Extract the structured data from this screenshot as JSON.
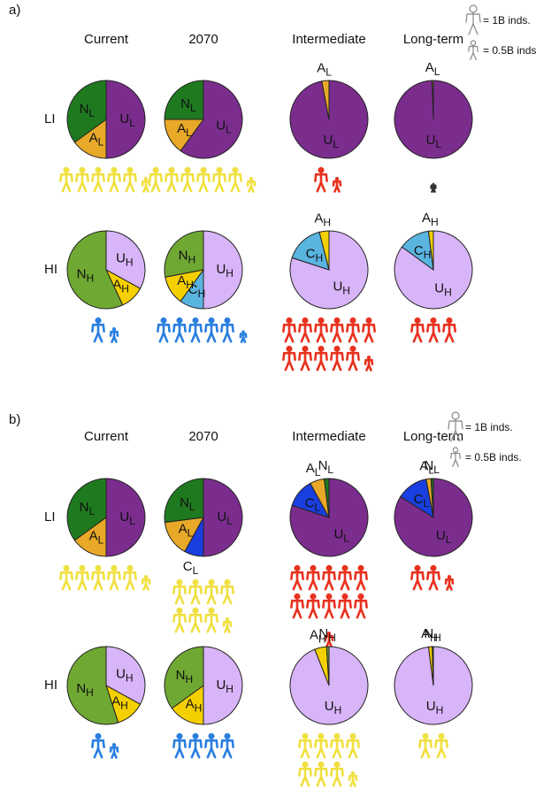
{
  "panels": [
    {
      "label": "a)",
      "columns": [
        "Current",
        "2070",
        "Intermediate",
        "Long-term"
      ],
      "rows": [
        "LI",
        "HI"
      ],
      "legend": [
        "= 1B inds.",
        "= 0.5B inds"
      ]
    },
    {
      "label": "b)",
      "columns": [
        "Current",
        "2070",
        "Intermediate",
        "Long-term"
      ],
      "rows": [
        "LI",
        "HI"
      ],
      "legend": [
        "= 1B inds.",
        "= 0.5B inds."
      ]
    }
  ],
  "chart_data": [
    {
      "type": "pie",
      "categories": [
        "U",
        "A",
        "N"
      ],
      "subscript": "L",
      "values": [
        50,
        15,
        35
      ],
      "colors": [
        "#7b2d8e",
        "#e8a828",
        "#1f7a1f"
      ],
      "population": 5.5,
      "population_color": "#f0e040"
    },
    {
      "type": "pie",
      "categories": [
        "U",
        "A",
        "N"
      ],
      "subscript": "L",
      "values": [
        60,
        15,
        25
      ],
      "colors": [
        "#7b2d8e",
        "#e8a828",
        "#1f7a1f"
      ],
      "population": 6.5,
      "population_color": "#f0e040"
    },
    {
      "type": "pie",
      "categories": [
        "U",
        "A"
      ],
      "subscript": "L",
      "values": [
        97,
        3
      ],
      "colors": [
        "#7b2d8e",
        "#e8a828"
      ],
      "population": 1.5,
      "population_color": "#e8321e"
    },
    {
      "type": "pie",
      "categories": [
        "U",
        "A"
      ],
      "subscript": "L",
      "values": [
        99.5,
        0.5
      ],
      "colors": [
        "#7b2d8e",
        "#e8a828"
      ],
      "population": 0.1,
      "population_color": "#333333"
    },
    {
      "type": "pie",
      "categories": [
        "U",
        "A",
        "N"
      ],
      "subscript": "H",
      "values": [
        33,
        10,
        57
      ],
      "colors": [
        "#d8b4f8",
        "#f5d000",
        "#6fa832"
      ],
      "population": 1.5,
      "population_color": "#2a7fe0"
    },
    {
      "type": "pie",
      "categories": [
        "U",
        "C",
        "A",
        "N"
      ],
      "subscript": "H",
      "values": [
        50,
        10,
        12,
        28
      ],
      "colors": [
        "#d8b4f8",
        "#5ab4e0",
        "#f5d000",
        "#6fa832"
      ],
      "population": 5.3,
      "population_color": "#2a7fe0"
    },
    {
      "type": "pie",
      "categories": [
        "U",
        "C",
        "A"
      ],
      "subscript": "H",
      "values": [
        80,
        16,
        4
      ],
      "colors": [
        "#d8b4f8",
        "#5ab4e0",
        "#f5d000"
      ],
      "population": 11.5,
      "population_color": "#e8321e"
    },
    {
      "type": "pie",
      "categories": [
        "U",
        "C",
        "A"
      ],
      "subscript": "H",
      "values": [
        85,
        13,
        2
      ],
      "colors": [
        "#d8b4f8",
        "#5ab4e0",
        "#f5d000"
      ],
      "population": 3,
      "population_color": "#e8321e"
    },
    {
      "type": "pie",
      "categories": [
        "U",
        "A",
        "N"
      ],
      "subscript": "L",
      "values": [
        50,
        15,
        35
      ],
      "colors": [
        "#7b2d8e",
        "#e8a828",
        "#1f7a1f"
      ],
      "population": 5.5,
      "population_color": "#f0e040"
    },
    {
      "type": "pie",
      "categories": [
        "U",
        "C",
        "A",
        "N"
      ],
      "subscript": "L",
      "values": [
        50,
        8,
        15,
        27
      ],
      "colors": [
        "#7b2d8e",
        "#1a3fe0",
        "#e8a828",
        "#1f7a1f"
      ],
      "population": 7.5,
      "population_color": "#f0e040"
    },
    {
      "type": "pie",
      "categories": [
        "U",
        "C",
        "A",
        "N"
      ],
      "subscript": "L",
      "values": [
        80,
        12,
        6,
        2
      ],
      "colors": [
        "#7b2d8e",
        "#1a3fe0",
        "#e8a828",
        "#1f7a1f"
      ],
      "population": 10.5,
      "population_color": "#e8321e"
    },
    {
      "type": "pie",
      "categories": [
        "U",
        "C",
        "A",
        "N"
      ],
      "subscript": "L",
      "values": [
        84,
        13,
        2,
        1
      ],
      "colors": [
        "#7b2d8e",
        "#1a3fe0",
        "#e8a828",
        "#1f7a1f"
      ],
      "population": 2.5,
      "population_color": "#e8321e"
    },
    {
      "type": "pie",
      "categories": [
        "U",
        "A",
        "N"
      ],
      "subscript": "H",
      "values": [
        33,
        12,
        55
      ],
      "colors": [
        "#d8b4f8",
        "#f5d000",
        "#6fa832"
      ],
      "population": 1.5,
      "population_color": "#2a7fe0"
    },
    {
      "type": "pie",
      "categories": [
        "U",
        "A",
        "N"
      ],
      "subscript": "H",
      "values": [
        50,
        15,
        35
      ],
      "colors": [
        "#d8b4f8",
        "#f5d000",
        "#6fa832"
      ],
      "population": 4,
      "population_color": "#2a7fe0"
    },
    {
      "type": "pie",
      "categories": [
        "U",
        "A",
        "N"
      ],
      "subscript": "H",
      "values": [
        94,
        5,
        1
      ],
      "colors": [
        "#d8b4f8",
        "#f5d000",
        "#6fa832"
      ],
      "population": 7.5,
      "population_color": "#f0e040"
    },
    {
      "type": "pie",
      "categories": [
        "U",
        "A",
        "N"
      ],
      "subscript": "H",
      "values": [
        98,
        1.5,
        0.5
      ],
      "colors": [
        "#d8b4f8",
        "#f5d000",
        "#6fa832"
      ],
      "population": 2,
      "population_color": "#f0e040"
    }
  ]
}
